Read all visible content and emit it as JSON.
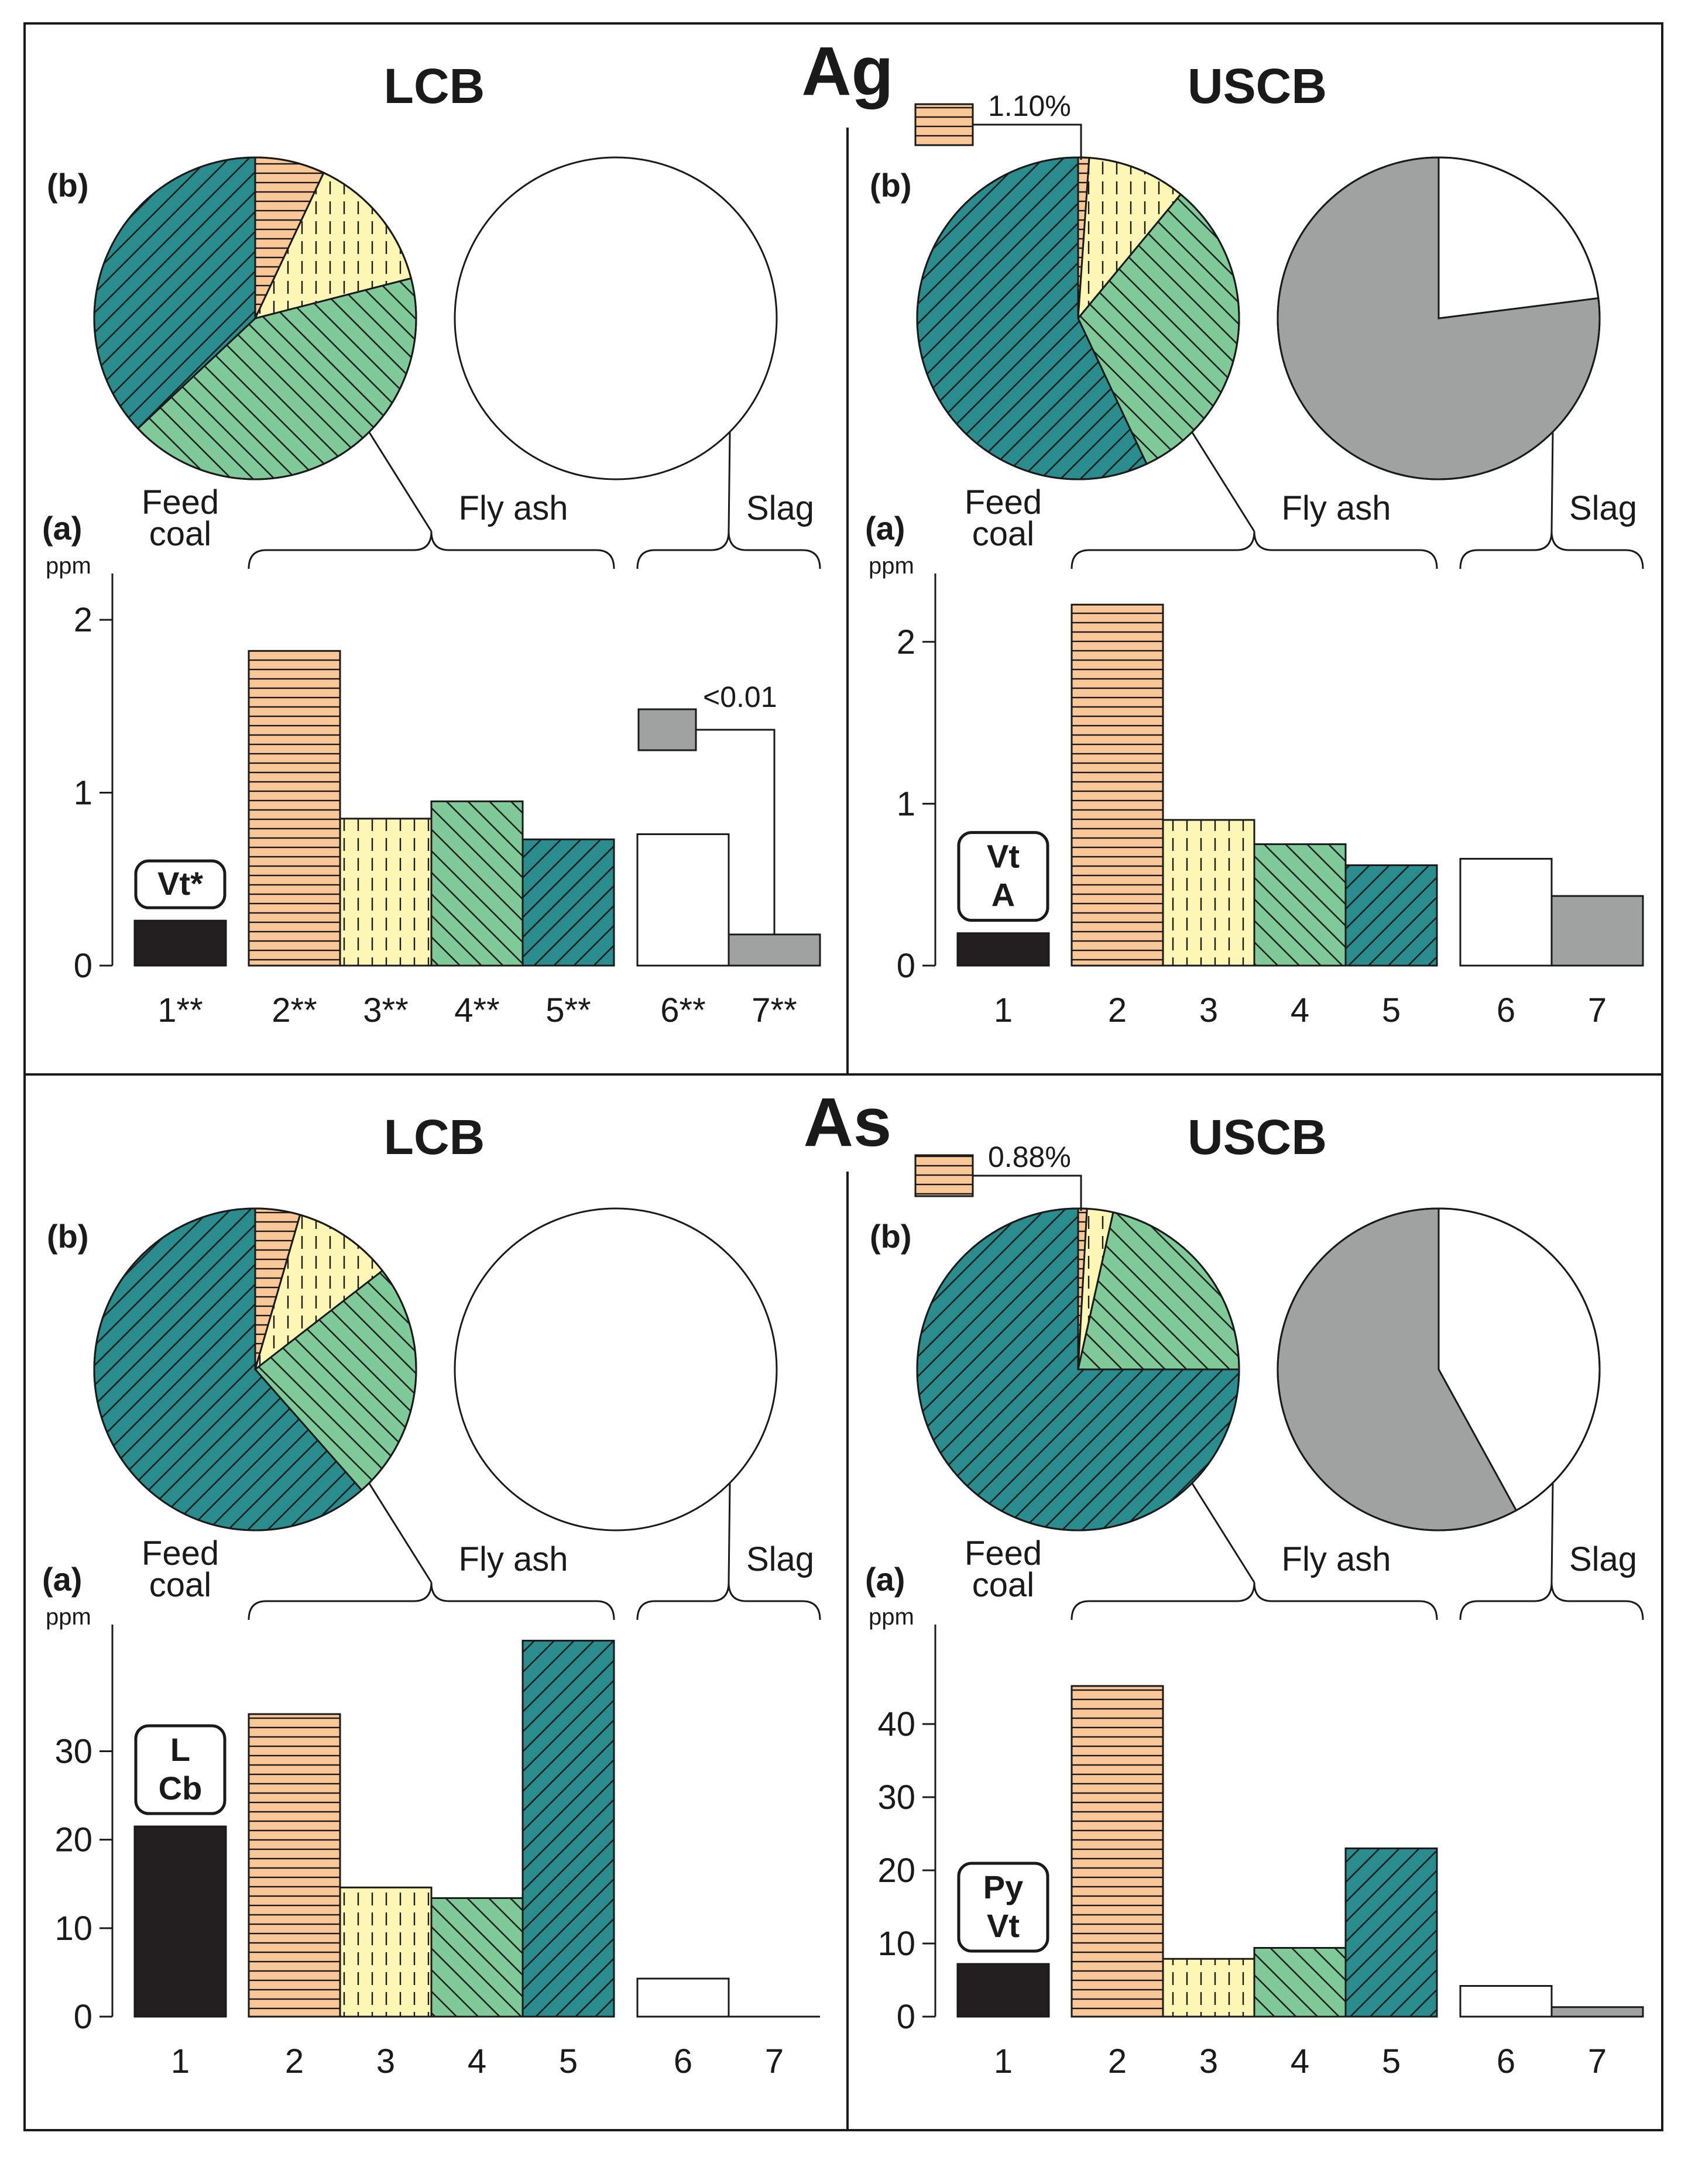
{
  "elements": [
    "Ag",
    "As"
  ],
  "basin_labels": [
    "LCB",
    "USCB"
  ],
  "panel_letters": {
    "pie": "(b)",
    "bar": "(a)"
  },
  "group_labels": {
    "feed_line1": "Feed",
    "feed_line2": "coal",
    "fly": "Fly ash",
    "slag": "Slag"
  },
  "unit": "ppm",
  "colors": {
    "feed": "#231f20",
    "s2": "#fbc796",
    "s3": "#fdf6b4",
    "s4": "#80c998",
    "s5": "#2b8c8d",
    "s6": "#ffffff",
    "s7": "#a0a2a1",
    "line": "#1a1a1a"
  },
  "chart_data": [
    {
      "type": "bar",
      "element": "Ag",
      "basin": "LCB",
      "categories": [
        "1**",
        "2**",
        "3**",
        "4**",
        "5**",
        "6**",
        "7**"
      ],
      "values": [
        0.26,
        1.82,
        0.85,
        0.95,
        0.73,
        0.76,
        0.18
      ],
      "ylim": [
        0,
        2.2
      ],
      "yticks": [
        0,
        1,
        2
      ],
      "badge": [
        "Vt*"
      ],
      "inset": {
        "label": "<0.01",
        "target": 7
      },
      "pies": [
        {
          "values": [
            7.0,
            14.0,
            42.0,
            37.0
          ],
          "parts": [
            2,
            3,
            4,
            5
          ]
        },
        {
          "values": [
            100
          ],
          "parts": [
            6
          ]
        }
      ]
    },
    {
      "type": "bar",
      "element": "Ag",
      "basin": "USCB",
      "categories": [
        "1",
        "2",
        "3",
        "4",
        "5",
        "6",
        "7"
      ],
      "values": [
        0.2,
        2.23,
        0.9,
        0.75,
        0.62,
        0.66,
        0.43
      ],
      "ylim": [
        0,
        2.35
      ],
      "yticks": [
        0,
        1,
        2
      ],
      "badge": [
        "Vt",
        "A"
      ],
      "pies": [
        {
          "values": [
            1.1,
            9.9,
            32.0,
            57.0
          ],
          "parts": [
            2,
            3,
            4,
            5
          ],
          "callout": "1.10%"
        },
        {
          "values": [
            23.0,
            77.0
          ],
          "parts": [
            6,
            7
          ]
        }
      ]
    },
    {
      "type": "bar",
      "element": "As",
      "basin": "LCB",
      "categories": [
        "1",
        "2",
        "3",
        "4",
        "5",
        "6",
        "7"
      ],
      "values": [
        21.5,
        34.2,
        14.6,
        13.4,
        42.5,
        4.3,
        0
      ],
      "ylim": [
        0,
        43
      ],
      "yticks": [
        0,
        10,
        20,
        30
      ],
      "badge": [
        "L",
        "Cb"
      ],
      "pies": [
        {
          "values": [
            4.5,
            10.0,
            24.0,
            61.5
          ],
          "parts": [
            2,
            3,
            4,
            5
          ]
        },
        {
          "values": [
            100
          ],
          "parts": [
            6
          ]
        }
      ]
    },
    {
      "type": "bar",
      "element": "As",
      "basin": "USCB",
      "categories": [
        "1",
        "2",
        "3",
        "4",
        "5",
        "6",
        "7"
      ],
      "values": [
        7.2,
        45.2,
        7.9,
        9.4,
        23.0,
        4.2,
        1.3
      ],
      "ylim": [
        0,
        52
      ],
      "yticks": [
        0,
        10,
        20,
        30,
        40
      ],
      "badge": [
        "Py",
        "Vt"
      ],
      "pies": [
        {
          "values": [
            0.88,
            2.62,
            21.5,
            75.0
          ],
          "parts": [
            2,
            3,
            4,
            5
          ],
          "callout": "0.88%"
        },
        {
          "values": [
            42.0,
            58.0
          ],
          "parts": [
            6,
            7
          ]
        }
      ]
    }
  ]
}
